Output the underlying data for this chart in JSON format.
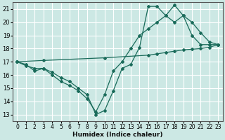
{
  "xlabel": "Humidex (Indice chaleur)",
  "bg_color": "#cce8e4",
  "grid_color": "#ffffff",
  "line_color": "#1a6b5a",
  "xlim": [
    -0.5,
    23.5
  ],
  "ylim": [
    12.5,
    21.5
  ],
  "yticks": [
    13,
    14,
    15,
    16,
    17,
    18,
    19,
    20,
    21
  ],
  "xticks": [
    0,
    1,
    2,
    3,
    4,
    5,
    6,
    7,
    8,
    9,
    10,
    11,
    12,
    13,
    14,
    15,
    16,
    17,
    18,
    19,
    20,
    21,
    22,
    23
  ],
  "series": [
    {
      "x": [
        0,
        3,
        10,
        15,
        16,
        17,
        18,
        19,
        20,
        21,
        22,
        23
      ],
      "y": [
        17.0,
        17.1,
        17.3,
        17.5,
        17.6,
        17.7,
        17.8,
        17.9,
        17.95,
        18.0,
        18.1,
        18.3
      ]
    },
    {
      "x": [
        0,
        1,
        2,
        3,
        4,
        5,
        6,
        7,
        8,
        9,
        10,
        11,
        12,
        13,
        14,
        15,
        16,
        17,
        18,
        19,
        20,
        21,
        22,
        23
      ],
      "y": [
        17.0,
        16.7,
        16.5,
        16.5,
        16.2,
        15.8,
        15.5,
        15.0,
        14.5,
        13.0,
        13.3,
        14.8,
        16.5,
        16.8,
        18.1,
        21.2,
        21.2,
        20.5,
        20.0,
        20.5,
        20.0,
        19.2,
        18.5,
        18.3
      ]
    },
    {
      "x": [
        0,
        1,
        2,
        3,
        4,
        5,
        6,
        7,
        8,
        9,
        10,
        11,
        12,
        13,
        14,
        15,
        16,
        17,
        18,
        19,
        20,
        21,
        22,
        23
      ],
      "y": [
        17.0,
        16.8,
        16.3,
        16.5,
        16.0,
        15.5,
        15.2,
        14.8,
        14.2,
        13.2,
        14.5,
        16.3,
        17.0,
        18.0,
        19.0,
        19.5,
        20.0,
        20.5,
        21.3,
        20.5,
        19.0,
        18.3,
        18.3,
        18.3
      ]
    }
  ]
}
